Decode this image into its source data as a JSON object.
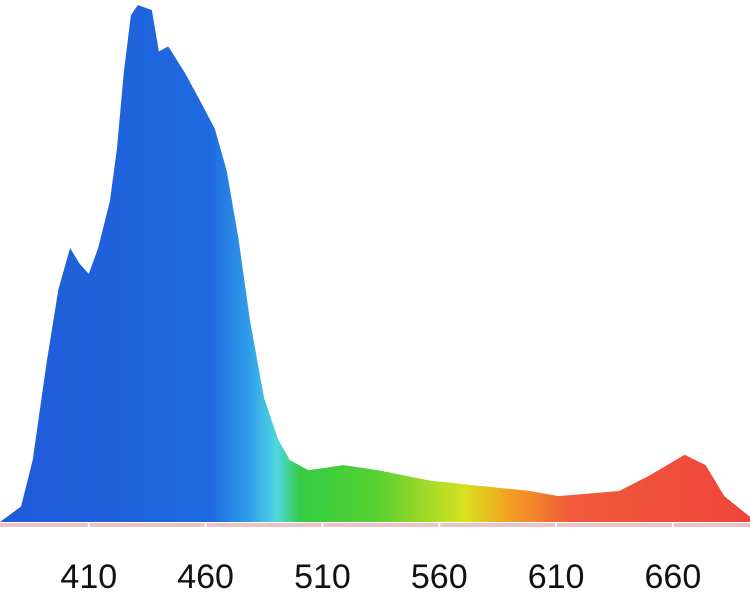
{
  "chart_data": {
    "type": "area",
    "x": [
      372,
      381,
      386,
      392,
      397,
      402,
      406,
      410,
      414,
      419,
      422,
      425,
      428,
      431,
      437,
      440,
      444,
      451,
      457,
      464,
      469,
      474,
      479,
      485,
      491,
      496,
      504,
      519,
      534,
      556,
      577,
      599,
      611,
      637,
      650,
      665,
      674,
      682,
      693
    ],
    "values": [
      0,
      3,
      12,
      31,
      45,
      53,
      50,
      48,
      53,
      62,
      72,
      87,
      98,
      100,
      99,
      91,
      92,
      87,
      82,
      76,
      68,
      55,
      39,
      24,
      16,
      12,
      10,
      11,
      10,
      8,
      7,
      6,
      5,
      6,
      9,
      13,
      11,
      5,
      1
    ],
    "xlim": [
      372,
      693
    ],
    "ylim": [
      0,
      100
    ],
    "xticks": [
      410,
      460,
      510,
      560,
      610,
      660
    ]
  }
}
